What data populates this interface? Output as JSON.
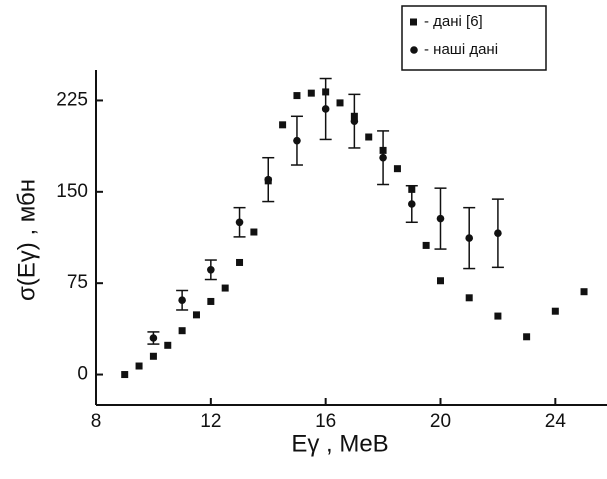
{
  "chart_data": {
    "type": "scatter",
    "xlabel": "Eγ ,  MeB",
    "ylabel": "σ(Eγ) ,  мбн",
    "xlim": [
      8,
      25.8
    ],
    "ylim": [
      -25,
      250
    ],
    "xticks": [
      8,
      12,
      16,
      20,
      24
    ],
    "yticks": [
      0,
      75,
      150,
      225
    ],
    "legend": "top-right",
    "series": [
      {
        "name": "- дані [6]",
        "color": "#111111",
        "marker": "square",
        "x": [
          9,
          9.5,
          10,
          10.5,
          11,
          11.5,
          12,
          12.5,
          13,
          13.5,
          14,
          14.5,
          15,
          15.5,
          16,
          16.5,
          17,
          17.5,
          18,
          18.5,
          19,
          19.5,
          20,
          21,
          22,
          23,
          24,
          25
        ],
        "values": [
          0,
          7,
          15,
          24,
          36,
          49,
          60,
          71,
          92,
          117,
          159,
          205,
          229,
          231,
          232,
          223,
          212,
          195,
          184,
          169,
          152,
          106,
          77,
          63,
          48,
          31,
          52,
          68
        ]
      },
      {
        "name": "- наші дані",
        "color": "#111111",
        "marker": "circle",
        "x": [
          10,
          11,
          12,
          13,
          14,
          15,
          16,
          17,
          18,
          19,
          20,
          21,
          22
        ],
        "values": [
          30,
          61,
          86,
          125,
          160,
          192,
          218,
          208,
          178,
          140,
          128,
          112,
          116
        ],
        "errors": [
          5,
          8,
          8,
          12,
          18,
          20,
          25,
          22,
          22,
          15,
          25,
          25,
          28
        ]
      }
    ]
  }
}
